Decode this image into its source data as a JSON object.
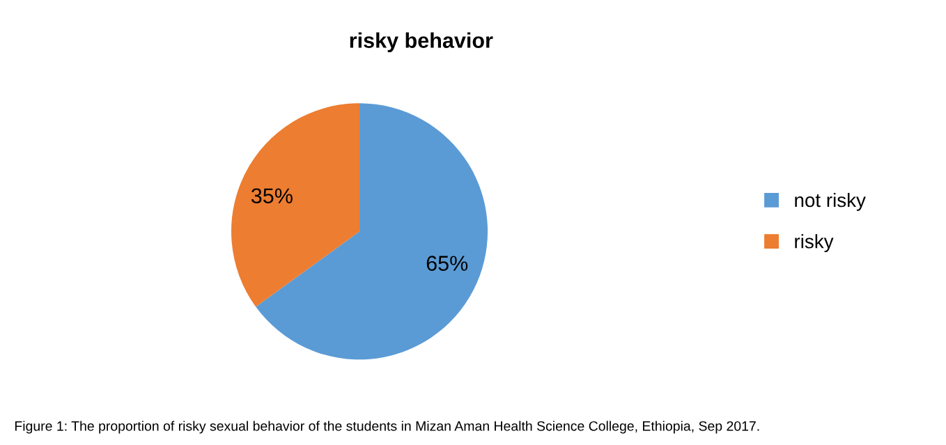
{
  "chart_data": {
    "type": "pie",
    "title": "risky behavior",
    "categories": [
      "not risky",
      "risky"
    ],
    "values": [
      65,
      35
    ],
    "colors": [
      "#5b9bd5",
      "#ed7d31"
    ],
    "value_labels": [
      "65%",
      "35%"
    ],
    "legend": "right",
    "annotations": [
      "Figure 1: The proportion of risky sexual behavior of the students in Mizan Aman Health Science College, Ethiopia, Sep 2017."
    ]
  }
}
